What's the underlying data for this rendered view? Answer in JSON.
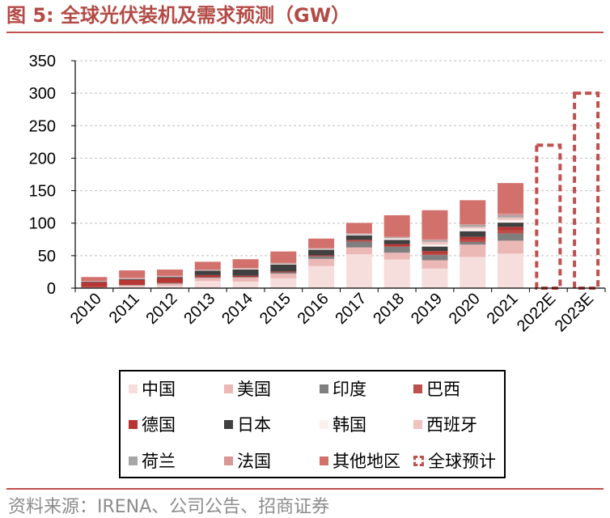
{
  "title": "图 5:  全球光伏装机及需求预测（GW）",
  "source": "资料来源：IRENA、公司公告、招商证券",
  "chart_data": {
    "type": "bar",
    "stacked": true,
    "title": "全球光伏装机及需求预测（GW）",
    "xlabel": "",
    "ylabel": "",
    "ylim": [
      0,
      350
    ],
    "yticks": [
      0,
      50,
      100,
      150,
      200,
      250,
      300,
      350
    ],
    "grid": true,
    "legend_position": "bottom",
    "categories": [
      "2010",
      "2011",
      "2012",
      "2013",
      "2014",
      "2015",
      "2016",
      "2017",
      "2018",
      "2019",
      "2020",
      "2021",
      "2022E",
      "2023E"
    ],
    "series": [
      {
        "name": "中国",
        "color": "#f6dedd",
        "values": [
          0.5,
          2.5,
          3.5,
          11,
          10,
          15,
          34,
          52,
          44,
          30,
          48,
          53,
          0,
          0
        ]
      },
      {
        "name": "美国",
        "color": "#ebb8b6",
        "values": [
          1,
          1.8,
          3.4,
          4.8,
          6.2,
          7.3,
          11,
          10.6,
          10.6,
          13,
          19,
          20,
          0,
          0
        ]
      },
      {
        "name": "印度",
        "color": "#7f7f7f",
        "values": [
          0,
          0.5,
          1,
          1,
          1,
          2,
          4,
          9,
          9,
          8,
          4,
          11,
          0,
          0
        ]
      },
      {
        "name": "巴西",
        "color": "#bc504b",
        "values": [
          0,
          0,
          0,
          0,
          0,
          0,
          0,
          1,
          1.2,
          2,
          3,
          5,
          0,
          0
        ]
      },
      {
        "name": "德国",
        "color": "#b73533",
        "values": [
          7.4,
          7.9,
          7.6,
          3.3,
          1.9,
          1.4,
          1.5,
          1.7,
          3,
          4,
          4.9,
          5.3,
          0,
          0
        ]
      },
      {
        "name": "日本",
        "color": "#404040",
        "values": [
          1,
          1.3,
          1.7,
          6.9,
          9.7,
          10.8,
          8.6,
          7,
          6.5,
          7,
          8.7,
          6.5,
          0,
          0
        ]
      },
      {
        "name": "韩国",
        "color": "#fdf1f0",
        "values": [
          0.1,
          0.1,
          0.3,
          0.4,
          0.9,
          1,
          0.9,
          1.2,
          2.2,
          3.1,
          4.1,
          4.2,
          0,
          0
        ]
      },
      {
        "name": "西班牙",
        "color": "#f0c2c0",
        "values": [
          0.4,
          0.4,
          0.3,
          0.2,
          0,
          0,
          0.1,
          0.1,
          0.3,
          4.2,
          2.6,
          3.8,
          0,
          0
        ]
      },
      {
        "name": "荷兰",
        "color": "#a6a6a6",
        "values": [
          0,
          0,
          0.2,
          0.3,
          0.4,
          0.5,
          0.6,
          0.9,
          1.5,
          2.6,
          3,
          3.3,
          0,
          0
        ]
      },
      {
        "name": "法国",
        "color": "#d99694",
        "values": [
          0.7,
          1.8,
          1.1,
          0.7,
          0.9,
          0.9,
          0.6,
          0.9,
          0.9,
          1,
          1,
          2.6,
          0,
          0
        ]
      },
      {
        "name": "其他地区",
        "color": "#d2706c",
        "values": [
          6,
          11,
          9.5,
          12,
          13.5,
          17.5,
          15,
          16,
          33,
          45,
          37,
          47,
          0,
          0
        ]
      },
      {
        "name": "全球预计",
        "color": "#c0504d",
        "style": "dashed-outline",
        "values": [
          0,
          0,
          0,
          0,
          0,
          0,
          0,
          0,
          0,
          0,
          0,
          0,
          220,
          300
        ]
      }
    ]
  }
}
